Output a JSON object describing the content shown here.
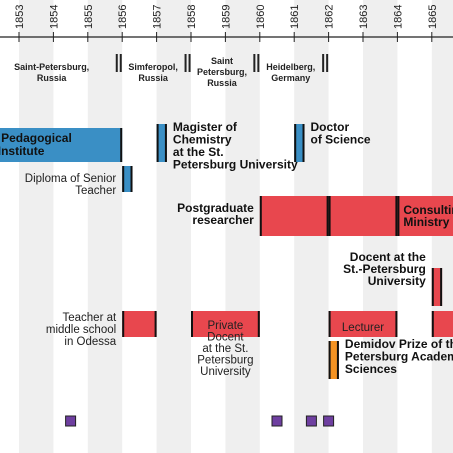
{
  "chart_data": {
    "type": "timeline",
    "x_range": [
      1852.8,
      1866.0
    ],
    "years": [
      "1853",
      "1854",
      "1855",
      "1856",
      "1857",
      "1858",
      "1859",
      "1860",
      "1861",
      "1862",
      "1863",
      "1864",
      "1865"
    ],
    "locations": [
      {
        "text": "Saint-Petersburg,\nRussia",
        "start": 1852.0,
        "end": 1855.9
      },
      {
        "text": "Simferopol,\nRussia",
        "start": 1855.9,
        "end": 1857.9
      },
      {
        "text": "Saint\nPetersburg,\nRussia",
        "start": 1857.9,
        "end": 1859.9
      },
      {
        "text": "Heidelberg,\nGermany",
        "start": 1859.9,
        "end": 1861.9
      }
    ],
    "events": [
      {
        "label": "Main Pedagogical\nInstitute",
        "kind": "education",
        "start": 1850.0,
        "end": 1856.0,
        "label_pos": "inside"
      },
      {
        "label": "Magister of\nChemistry\nat the St.\nPetersburg University",
        "kind": "education",
        "start": 1857.0,
        "end": 1857.3,
        "label_pos": "right"
      },
      {
        "label": "Doctor\nof Science",
        "kind": "education",
        "start": 1861.0,
        "end": 1861.3,
        "label_pos": "right"
      },
      {
        "label": "Diploma of Senior\nTeacher",
        "kind": "education",
        "start": 1856.0,
        "end": 1856.3,
        "label_pos": "left"
      },
      {
        "label": "Postgraduate\nresearcher",
        "kind": "work",
        "start": 1860.0,
        "end": 1862.0,
        "label_pos": "left"
      },
      {
        "label": "",
        "kind": "work",
        "start": 1862.0,
        "end": 1864.0,
        "label_pos": "none"
      },
      {
        "label": "Consulting\nMinistry of",
        "kind": "work",
        "start": 1864.0,
        "end": 1866.0,
        "label_pos": "right-only"
      },
      {
        "label": "Docent at the\nSt.-Petersburg\nUniversity",
        "kind": "work",
        "start": 1865.0,
        "end": 1865.3,
        "label_pos": "left"
      },
      {
        "label": "Teacher at\nmiddle school\nin Odessa",
        "kind": "work",
        "start": 1856.0,
        "end": 1857.0,
        "label_pos": "left"
      },
      {
        "label": "Private\nDocent\nat the St.\nPetersburg\nUniversity",
        "kind": "work",
        "start": 1858.0,
        "end": 1860.0,
        "label_pos": "inside-below"
      },
      {
        "label": "Lecturer",
        "kind": "work",
        "start": 1862.0,
        "end": 1864.0,
        "label_pos": "inside"
      },
      {
        "label": "",
        "kind": "work",
        "start": 1865.0,
        "end": 1866.0,
        "label_pos": "none"
      },
      {
        "label": "Demidov Prize of the\nPetersburg Academy\nSciences",
        "kind": "award",
        "start": 1862.0,
        "end": 1862.3,
        "label_pos": "right"
      }
    ],
    "markers": [
      1854.5,
      1860.5,
      1861.5,
      1862.0
    ],
    "colors": {
      "education": "#3a8fc5",
      "work": "#e8474e",
      "award": "#f59322",
      "marker": "#6e3fa0",
      "band": "#efefef"
    }
  }
}
